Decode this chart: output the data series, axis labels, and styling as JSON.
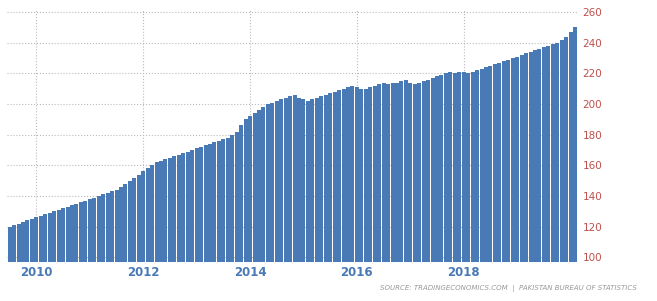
{
  "bar_color": "#4a7ab5",
  "background_color": "#ffffff",
  "grid_color": "#bbbbbb",
  "ylabel_color": "#c0504d",
  "xlabel_color": "#4a7ab5",
  "source_text": "SOURCE: TRADINGECONOMICS.COM  |  PAKISTAN BUREAU OF STATISTICS",
  "source_color": "#999999",
  "ylim": [
    97,
    262
  ],
  "yticks": [
    100,
    120,
    140,
    160,
    180,
    200,
    220,
    240,
    260
  ],
  "xtick_years": [
    "2010",
    "2012",
    "2014",
    "2016",
    "2018"
  ],
  "year_positions": [
    6,
    30,
    54,
    78,
    102
  ],
  "values": [
    120,
    121,
    122,
    123,
    124,
    125,
    126,
    127,
    128,
    129,
    130,
    131,
    132,
    133,
    134,
    135,
    136,
    137,
    138,
    139,
    140,
    141,
    142,
    143,
    144,
    146,
    148,
    150,
    152,
    154,
    156,
    158,
    160,
    162,
    163,
    164,
    165,
    166,
    167,
    168,
    169,
    170,
    171,
    172,
    173,
    174,
    175,
    176,
    177,
    178,
    180,
    182,
    186,
    190,
    192,
    194,
    196,
    198,
    200,
    201,
    202,
    203,
    204,
    205,
    206,
    204,
    203,
    202,
    203,
    204,
    205,
    206,
    207,
    208,
    209,
    210,
    211,
    212,
    211,
    210,
    210,
    211,
    212,
    213,
    214,
    213,
    214,
    214,
    215,
    216,
    214,
    213,
    214,
    215,
    216,
    217,
    218,
    219,
    220,
    221,
    220,
    221,
    221,
    220,
    221,
    222,
    223,
    224,
    225,
    226,
    227,
    228,
    229,
    230,
    231,
    232,
    233,
    234,
    235,
    236,
    237,
    238,
    239,
    240,
    242,
    244,
    247,
    250
  ]
}
